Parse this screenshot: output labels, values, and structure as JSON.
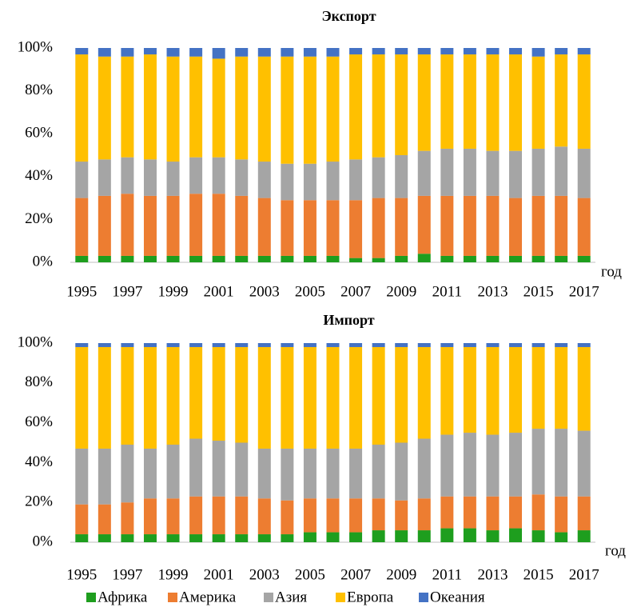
{
  "chart_data": [
    {
      "type": "stacked_bar",
      "title": "Экспорт",
      "xlabel": "год",
      "categories": [
        "1995",
        null,
        "1997",
        null,
        "1999",
        null,
        "2001",
        null,
        "2003",
        null,
        "2005",
        null,
        "2007",
        null,
        "2009",
        null,
        "2011",
        null,
        "2013",
        null,
        "2015",
        null,
        "2017"
      ],
      "ylim": [
        0,
        100
      ],
      "yticks": [
        {
          "value": 0,
          "label": "0%"
        },
        {
          "value": 20,
          "label": "20%"
        },
        {
          "value": 40,
          "label": "40%"
        },
        {
          "value": 60,
          "label": "60%"
        },
        {
          "value": 80,
          "label": "80%"
        },
        {
          "value": 100,
          "label": "100%"
        }
      ],
      "series": [
        {
          "name": "Африка",
          "color": "#1e9e1e",
          "values": [
            3,
            3,
            3,
            3,
            3,
            3,
            3,
            3,
            3,
            3,
            3,
            3,
            2,
            2,
            3,
            4,
            3,
            3,
            3,
            3,
            3,
            3,
            3
          ]
        },
        {
          "name": "Америка",
          "color": "#ed7d31",
          "values": [
            27,
            28,
            29,
            28,
            28,
            29,
            29,
            28,
            27,
            26,
            26,
            26,
            27,
            28,
            27,
            27,
            28,
            28,
            28,
            27,
            28,
            28,
            27
          ]
        },
        {
          "name": "Азия",
          "color": "#a5a5a5",
          "values": [
            17,
            17,
            17,
            17,
            16,
            17,
            17,
            17,
            17,
            17,
            17,
            18,
            19,
            19,
            20,
            21,
            22,
            22,
            21,
            22,
            22,
            23,
            23
          ]
        },
        {
          "name": "Европа",
          "color": "#ffc000",
          "values": [
            50,
            48,
            47,
            49,
            49,
            47,
            46,
            48,
            49,
            50,
            50,
            49,
            49,
            48,
            47,
            45,
            44,
            44,
            45,
            45,
            43,
            43,
            44
          ]
        },
        {
          "name": "Океания",
          "color": "#4472c4",
          "values": [
            3,
            4,
            4,
            3,
            4,
            4,
            5,
            4,
            4,
            4,
            4,
            4,
            3,
            3,
            3,
            3,
            3,
            3,
            3,
            3,
            4,
            3,
            3
          ]
        }
      ]
    },
    {
      "type": "stacked_bar",
      "title": "Импорт",
      "xlabel": "год",
      "categories": [
        "1995",
        null,
        "1997",
        null,
        "1999",
        null,
        "2001",
        null,
        "2003",
        null,
        "2005",
        null,
        "2007",
        null,
        "2009",
        null,
        "2011",
        null,
        "2013",
        null,
        "2015",
        null,
        "2017"
      ],
      "ylim": [
        0,
        100
      ],
      "yticks": [
        {
          "value": 0,
          "label": "0%"
        },
        {
          "value": 20,
          "label": "20%"
        },
        {
          "value": 40,
          "label": "40%"
        },
        {
          "value": 60,
          "label": "60%"
        },
        {
          "value": 80,
          "label": "80%"
        },
        {
          "value": 100,
          "label": "100%"
        }
      ],
      "series": [
        {
          "name": "Африка",
          "color": "#1e9e1e",
          "values": [
            4,
            4,
            4,
            4,
            4,
            4,
            4,
            4,
            4,
            4,
            5,
            5,
            5,
            6,
            6,
            6,
            7,
            7,
            6,
            7,
            6,
            5,
            6
          ]
        },
        {
          "name": "Америка",
          "color": "#ed7d31",
          "values": [
            15,
            15,
            16,
            18,
            18,
            19,
            19,
            19,
            18,
            17,
            17,
            17,
            17,
            16,
            15,
            16,
            16,
            16,
            17,
            16,
            18,
            18,
            17
          ]
        },
        {
          "name": "Азия",
          "color": "#a5a5a5",
          "values": [
            28,
            28,
            29,
            25,
            27,
            29,
            28,
            27,
            25,
            26,
            25,
            25,
            25,
            27,
            29,
            30,
            31,
            32,
            31,
            32,
            33,
            34,
            33
          ]
        },
        {
          "name": "Европа",
          "color": "#ffc000",
          "values": [
            51,
            51,
            49,
            51,
            49,
            46,
            47,
            48,
            51,
            51,
            51,
            51,
            51,
            49,
            48,
            46,
            44,
            43,
            44,
            43,
            41,
            41,
            42
          ]
        },
        {
          "name": "Океания",
          "color": "#4472c4",
          "values": [
            2,
            2,
            2,
            2,
            2,
            2,
            2,
            2,
            2,
            2,
            2,
            2,
            2,
            2,
            2,
            2,
            2,
            2,
            2,
            2,
            2,
            2,
            2
          ]
        }
      ]
    }
  ]
}
